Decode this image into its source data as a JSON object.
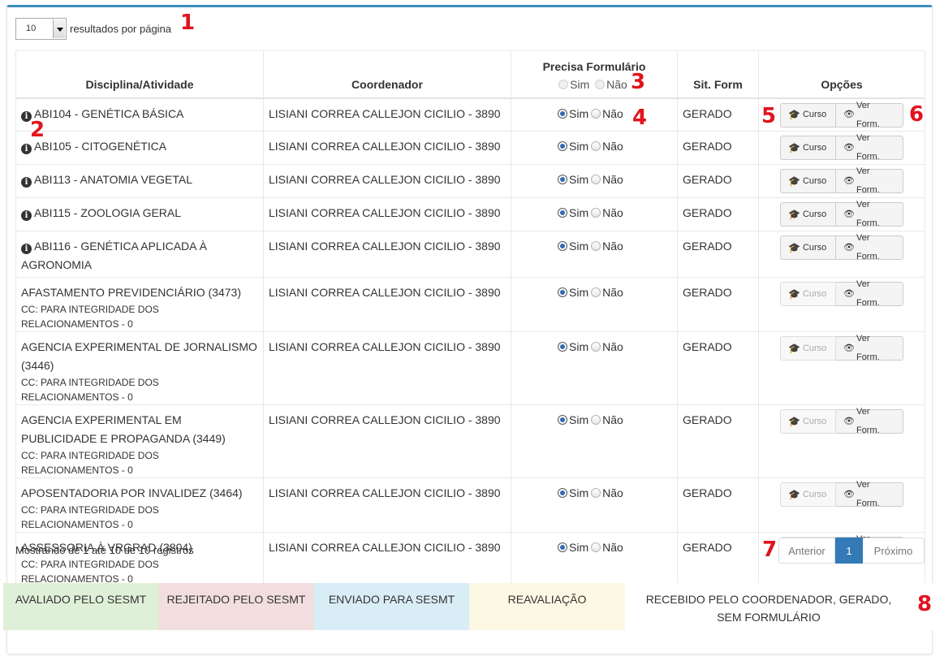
{
  "length": {
    "value": "10",
    "label": "resultados por página"
  },
  "table": {
    "headers": {
      "disciplina": "Disciplina/Atividade",
      "coordenador": "Coordenador",
      "precisa": "Precisa Formulário",
      "sit": "Sit. Form",
      "opcoes": "Opções"
    },
    "radio_sim": "Sim",
    "radio_nao": "Não",
    "btn_curso": "Curso",
    "btn_ver": "Ver Form.",
    "rows": [
      {
        "disciplina": "ABI104 - GENÉTICA BÁSICA",
        "cc": "",
        "coordenador": "LISIANI CORREA CALLEJON CICILIO - 3890",
        "sit": "GERADO"
      },
      {
        "disciplina": "ABI105 - CITOGENÉTICA",
        "cc": "",
        "coordenador": "LISIANI CORREA CALLEJON CICILIO - 3890",
        "sit": "GERADO"
      },
      {
        "disciplina": "ABI113 - ANATOMIA VEGETAL",
        "cc": "",
        "coordenador": "LISIANI CORREA CALLEJON CICILIO - 3890",
        "sit": "GERADO"
      },
      {
        "disciplina": "ABI115 - ZOOLOGIA GERAL",
        "cc": "",
        "coordenador": "LISIANI CORREA CALLEJON CICILIO - 3890",
        "sit": "GERADO"
      },
      {
        "disciplina": "ABI116 - GENÉTICA APLICADA À AGRONOMIA",
        "cc": "",
        "coordenador": "LISIANI CORREA CALLEJON CICILIO - 3890",
        "sit": "GERADO"
      },
      {
        "disciplina": "AFASTAMENTO PREVIDENCIÁRIO (3473)",
        "cc": "CC: PARA INTEGRIDADE DOS RELACIONAMENTOS - 0",
        "coordenador": "LISIANI CORREA CALLEJON CICILIO - 3890",
        "sit": "GERADO"
      },
      {
        "disciplina": "AGENCIA EXPERIMENTAL DE JORNALISMO (3446)",
        "cc": "CC: PARA INTEGRIDADE DOS RELACIONAMENTOS - 0",
        "coordenador": "LISIANI CORREA CALLEJON CICILIO - 3890",
        "sit": "GERADO"
      },
      {
        "disciplina": "AGENCIA EXPERIMENTAL EM PUBLICIDADE E PROPAGANDA (3449)",
        "cc": "CC: PARA INTEGRIDADE DOS RELACIONAMENTOS - 0",
        "coordenador": "LISIANI CORREA CALLEJON CICILIO - 3890",
        "sit": "GERADO"
      },
      {
        "disciplina": "APOSENTADORIA POR INVALIDEZ (3464)",
        "cc": "CC: PARA INTEGRIDADE DOS RELACIONAMENTOS - 0",
        "coordenador": "LISIANI CORREA CALLEJON CICILIO - 3890",
        "sit": "GERADO"
      },
      {
        "disciplina": "ASSESSORIA À VRGRAD (3804)",
        "cc": "CC: PARA INTEGRIDADE DOS RELACIONAMENTOS - 0",
        "coordenador": "LISIANI CORREA CALLEJON CICILIO - 3890",
        "sit": "GERADO"
      }
    ]
  },
  "footer": {
    "info": "Mostrando de 1 até 10 de 10 registros",
    "prev": "Anterior",
    "page": "1",
    "next": "Próximo"
  },
  "legend": [
    {
      "label": "AVALIADO PELO SESMT",
      "color": "#dff0d8"
    },
    {
      "label": "REJEITADO PELO SESMT",
      "color": "#f2dede"
    },
    {
      "label": "ENVIADO PARA SESMT",
      "color": "#d9edf7"
    },
    {
      "label": "REAVALIAÇÃO",
      "color": "#fcf8e3"
    },
    {
      "label": "RECEBIDO PELO COORDENADOR, GERADO, SEM FORMULÁRIO",
      "color": "#ffffff"
    }
  ],
  "annotations": [
    "1",
    "2",
    "3",
    "4",
    "5",
    "6",
    "7",
    "8"
  ]
}
